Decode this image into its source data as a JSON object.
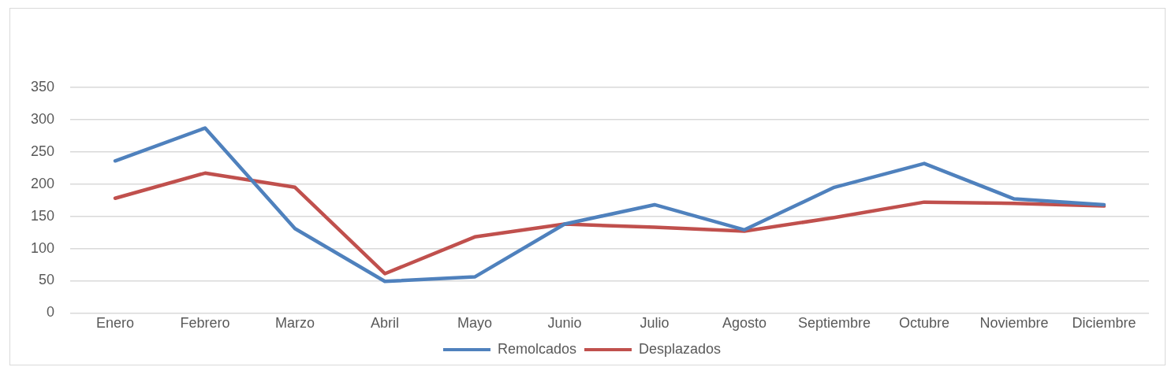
{
  "chart_data": {
    "type": "line",
    "categories": [
      "Enero",
      "Febrero",
      "Marzo",
      "Abril",
      "Mayo",
      "Junio",
      "Julio",
      "Agosto",
      "Septiembre",
      "Octubre",
      "Noviembre",
      "Diciembre"
    ],
    "series": [
      {
        "name": "Remolcados",
        "color": "#4f81bd",
        "values": [
          236,
          287,
          131,
          49,
          56,
          138,
          168,
          129,
          195,
          232,
          177,
          168
        ]
      },
      {
        "name": "Desplazados",
        "color": "#c0504d",
        "values": [
          178,
          217,
          195,
          61,
          118,
          138,
          133,
          127,
          148,
          172,
          170,
          166
        ]
      }
    ],
    "ylim": [
      0,
      350
    ],
    "yticks": [
      0,
      50,
      100,
      150,
      200,
      250,
      300,
      350
    ],
    "grid": "y",
    "legend": "bottom",
    "marker": "none",
    "line_style": "solid"
  }
}
